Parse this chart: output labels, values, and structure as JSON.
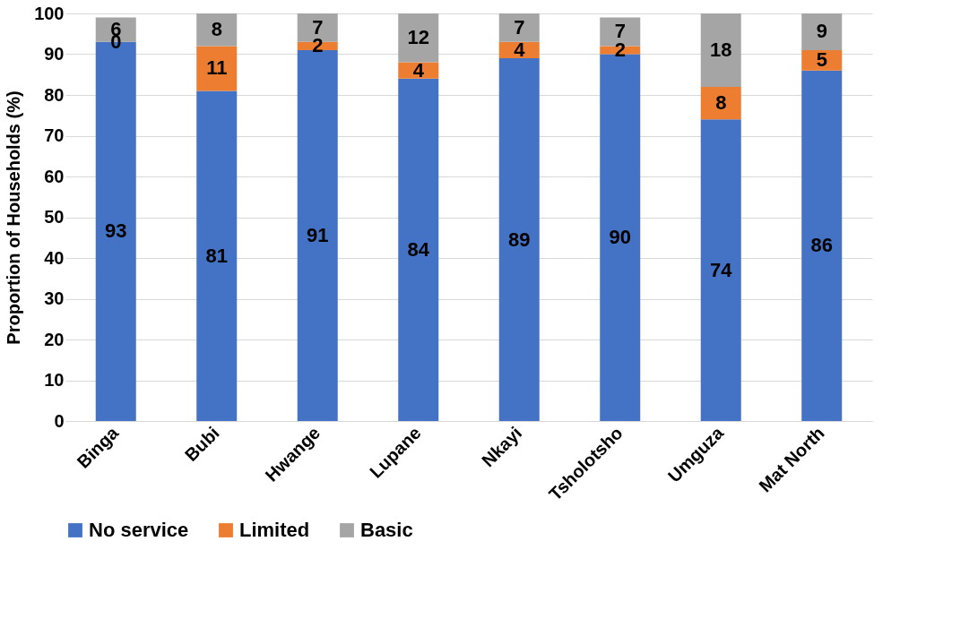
{
  "chart_data": {
    "type": "bar",
    "stacked": true,
    "ylabel": "Proportion of Households (%)",
    "categories": [
      "Binga",
      "Bubi",
      "Hwange",
      "Lupane",
      "Nkayi",
      "Tsholotsho",
      "Umguza",
      "Mat North"
    ],
    "series": [
      {
        "name": "No service",
        "color": "#4472c4",
        "values": [
          93,
          81,
          91,
          84,
          89,
          90,
          74,
          86
        ]
      },
      {
        "name": "Limited",
        "color": "#ed7d31",
        "values": [
          0,
          11,
          2,
          4,
          4,
          2,
          8,
          5
        ]
      },
      {
        "name": "Basic",
        "color": "#a5a5a5",
        "values": [
          6,
          8,
          7,
          12,
          7,
          7,
          18,
          9
        ]
      }
    ],
    "ylim": [
      0,
      100
    ],
    "yticks": [
      0,
      10,
      20,
      30,
      40,
      50,
      60,
      70,
      80,
      90,
      100
    ],
    "grid": "y",
    "legend": "bottom",
    "data_labels": true
  }
}
